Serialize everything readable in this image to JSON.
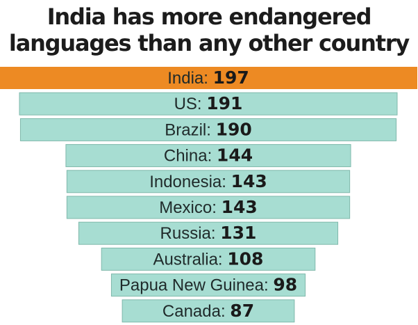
{
  "chart_data": {
    "type": "bar",
    "title": [
      "India has more endangered",
      "languages than any other country"
    ],
    "categories": [
      "India",
      "US",
      "Brazil",
      "China",
      "Indonesia",
      "Mexico",
      "Russia",
      "Australia",
      "Papua New Guinea",
      "Canada"
    ],
    "values": [
      197,
      191,
      190,
      144,
      143,
      143,
      131,
      108,
      98,
      87
    ],
    "highlight": "India",
    "colors": {
      "highlight": "#ed8a23",
      "bar": "#a7ddd2",
      "bar_border": "#7fb8ab",
      "title_text": "#1c1c1c",
      "label_text": "#1f2a2a"
    }
  }
}
